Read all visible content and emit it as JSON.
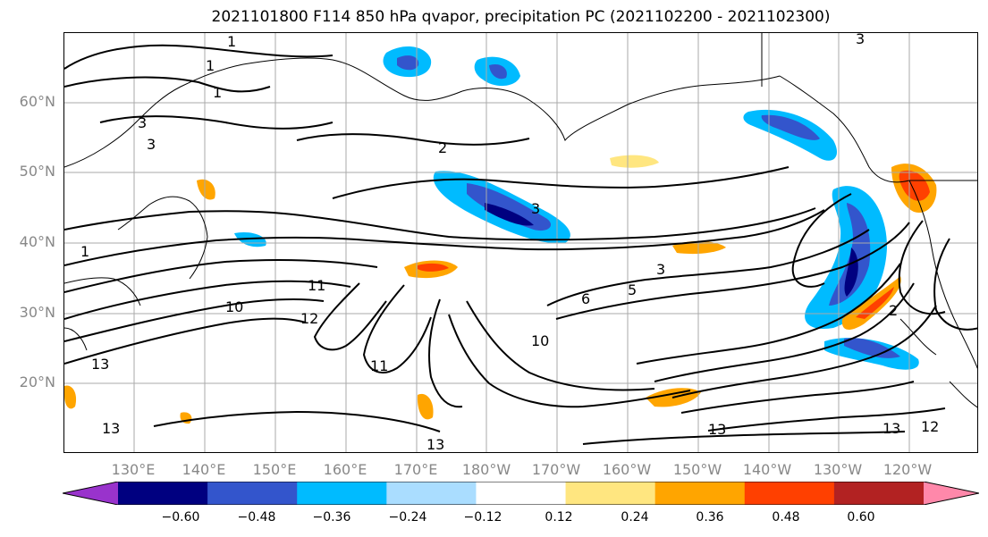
{
  "title": "2021101800 F114 850 hPa qvapor, precipitation PC (2021102200 - 2021102300)",
  "lat_labels": [
    "60°N",
    "50°N",
    "40°N",
    "30°N",
    "20°N"
  ],
  "lon_labels": [
    "130°E",
    "140°E",
    "150°E",
    "160°E",
    "170°E",
    "180°W",
    "170°W",
    "160°W",
    "150°W",
    "140°W",
    "130°W",
    "120°W"
  ],
  "contour_labels": [
    "1",
    "1",
    "1",
    "3",
    "3",
    "2",
    "3",
    "1",
    "11",
    "10",
    "12",
    "5",
    "6",
    "3",
    "10",
    "11",
    "13",
    "13",
    "13",
    "13",
    "12",
    "2",
    "3",
    "13"
  ],
  "colorbar": {
    "ticks": [
      "−0.60",
      "−0.48",
      "−0.36",
      "−0.24",
      "−0.12",
      "0.12",
      "0.24",
      "0.36",
      "0.48",
      "0.60"
    ],
    "colors": [
      "#9933cc",
      "#000080",
      "#3355cc",
      "#00bbff",
      "#aaddff",
      "#ffffff",
      "#ffe680",
      "#ffa500",
      "#ff4000",
      "#b22222",
      "#ff88aa"
    ]
  },
  "colors": {
    "contour": "#000000",
    "axis_label": "#888888",
    "grid": "#aaaaaa"
  }
}
